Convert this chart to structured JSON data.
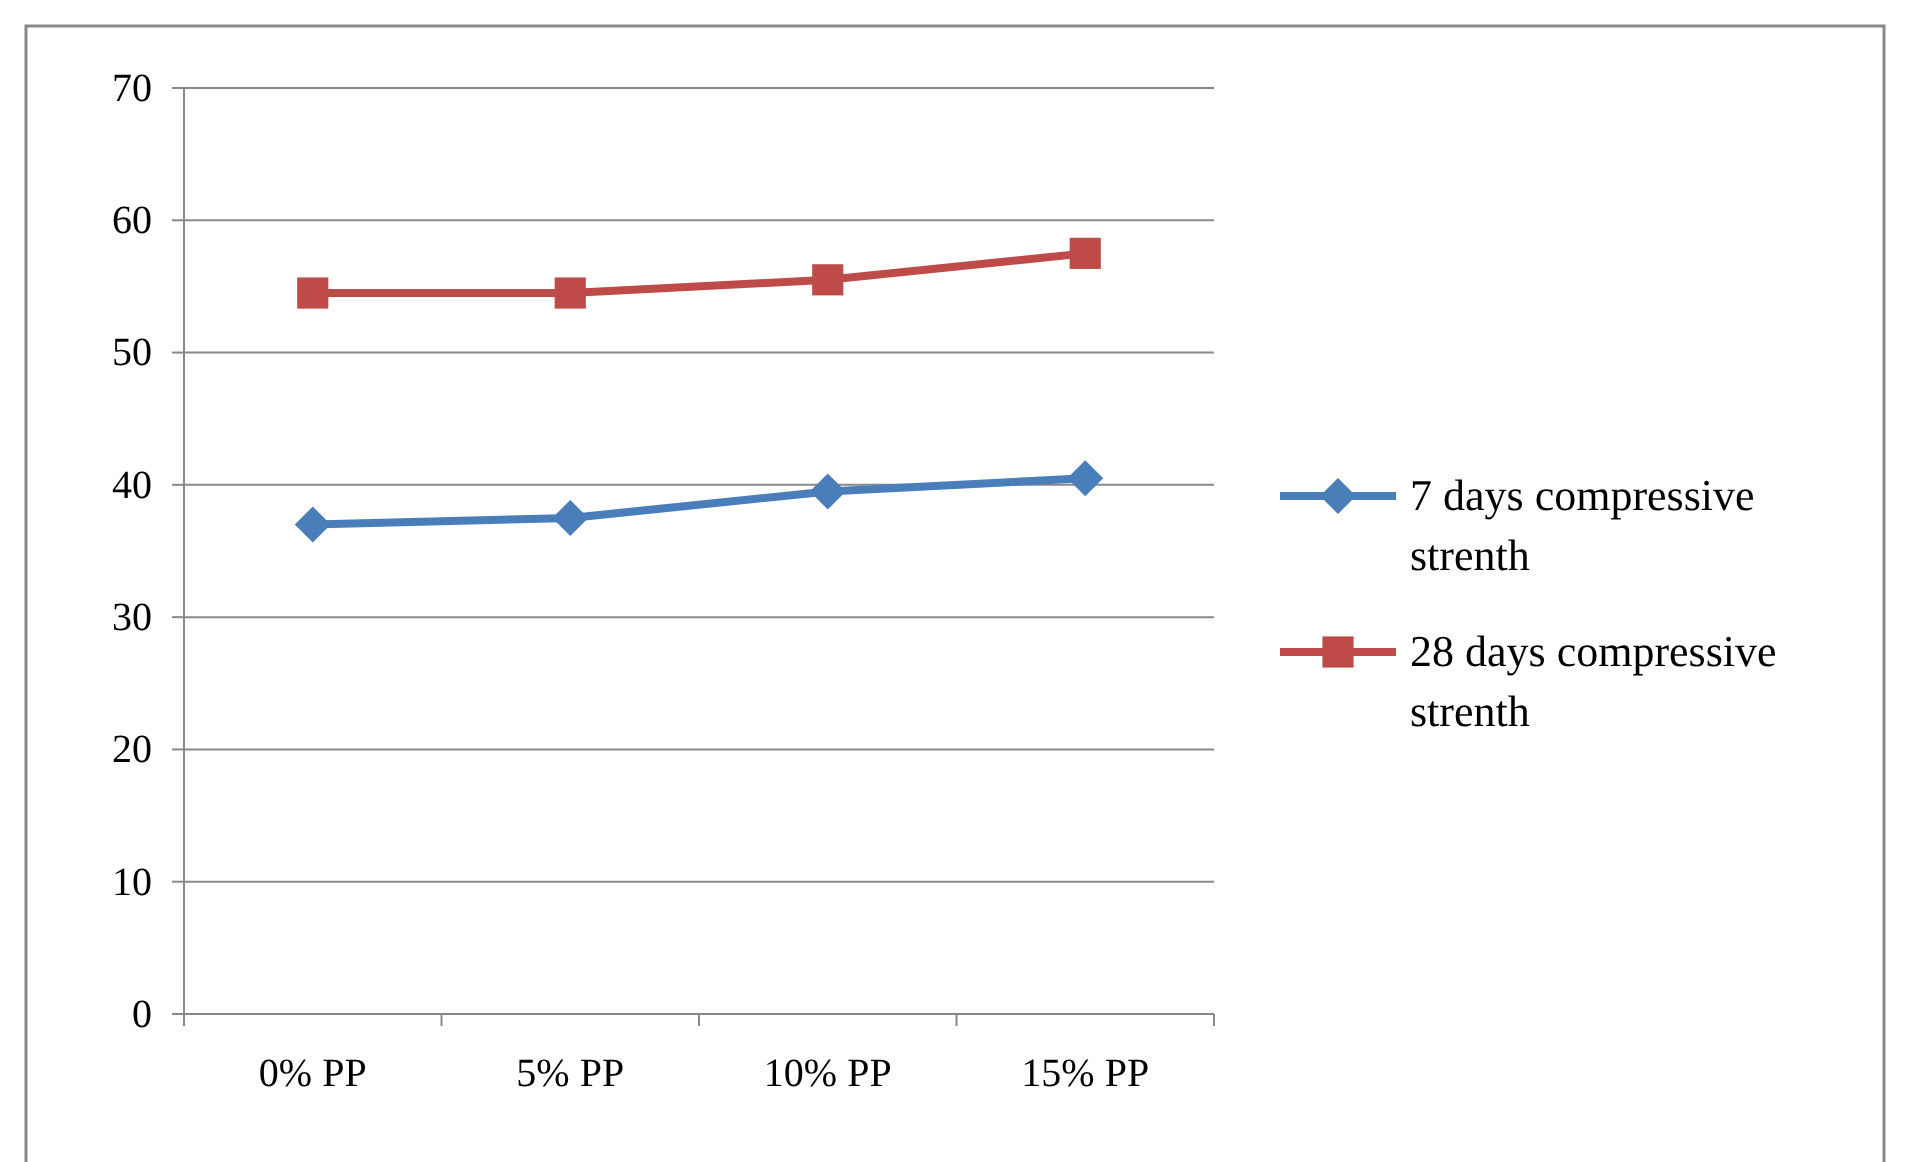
{
  "chart_data": {
    "type": "line",
    "categories": [
      "0% PP",
      "5% PP",
      "10% PP",
      "15% PP"
    ],
    "series": [
      {
        "name": "7 days compressive strenth",
        "color": "#4a7ebb",
        "marker": "diamond",
        "values": [
          37,
          37.5,
          39.5,
          40.5
        ]
      },
      {
        "name": "28 days compressive strenth",
        "color": "#be4b48",
        "marker": "square",
        "values": [
          54.5,
          54.5,
          55.5,
          57.5
        ]
      }
    ],
    "ylim": [
      0,
      70
    ],
    "yticks": [
      0,
      10,
      20,
      30,
      40,
      50,
      60,
      70
    ],
    "grid": "y",
    "legend": "right",
    "line_style": "solid"
  }
}
